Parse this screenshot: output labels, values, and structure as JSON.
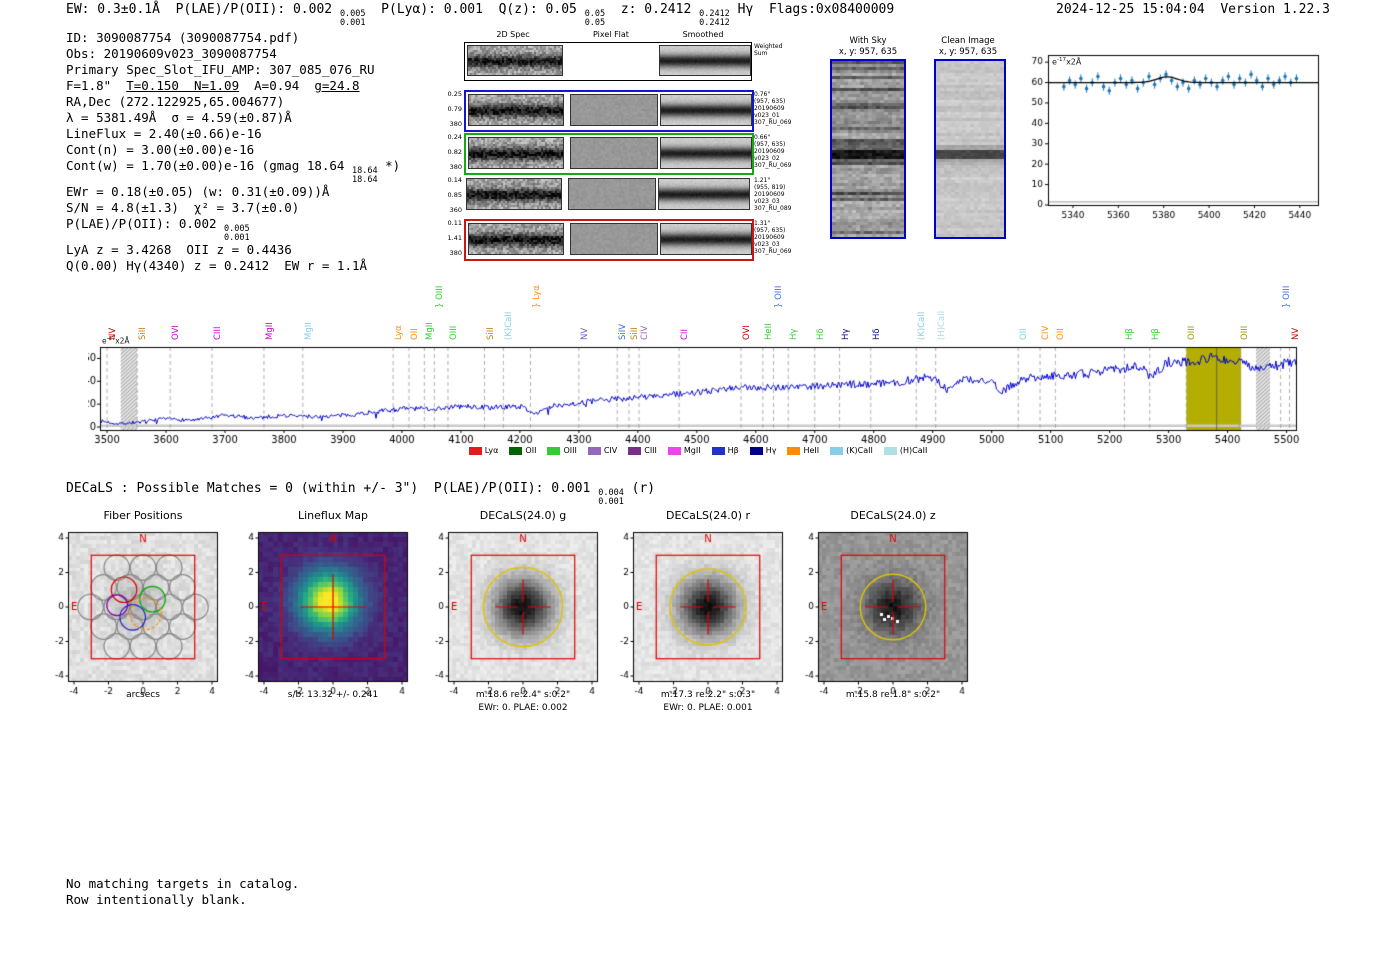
{
  "header_left": [
    {
      "t": "EW: 0.3±0.1Å  P(LAE)/P(OII): 0.002 "
    },
    {
      "hi": "0.005",
      "lo": "0.001"
    },
    {
      "t": "  P(Lyα): 0.001  Q(z): 0.05 "
    },
    {
      "hi": "0.05",
      "lo": "0.05"
    },
    {
      "t": "  z: 0.2412 "
    },
    {
      "hi": "0.2412",
      "lo": "0.2412"
    },
    {
      "t": " Hγ  Flags:0x08400009"
    }
  ],
  "header_right": "2024-12-25 15:04:04  Version 1.22.3",
  "info_lines": [
    [
      {
        "t": "ID: 3090087754 (3090087754.pdf)"
      }
    ],
    [
      {
        "t": "Obs: 20190609v023_3090087754"
      }
    ],
    [
      {
        "t": "Primary Spec_Slot_IFU_AMP: 307_085_076_RU"
      }
    ],
    [
      {
        "t": "F=1.8\"  "
      },
      {
        "t": "T=0.150  N=1.09",
        "u": true
      },
      {
        "t": "  A=0.94  "
      },
      {
        "t": "g=24.8",
        "u": true
      }
    ],
    [
      {
        "t": "RA,Dec (272.122925,65.004677)"
      }
    ],
    [
      {
        "t": "λ = 5381.49Å  σ = 4.59(±0.87)Å"
      }
    ],
    [
      {
        "t": "LineFlux = 2.40(±0.66)e-16"
      }
    ],
    [
      {
        "t": "Cont(n) = 3.00(±0.00)e-16"
      }
    ],
    [
      {
        "t": "Cont(w) = 1.70(±0.00)e-16 (gmag 18.64 "
      },
      {
        "hi": "18.64",
        "lo": "18.64"
      },
      {
        "t": " *)"
      }
    ],
    [
      {
        "t": "EWr = 0.18(±0.05) (w: 0.31(±0.09))Å"
      }
    ],
    [
      {
        "t": "S/N = 4.8(±1.3)  χ² = 3.7(±0.0)"
      }
    ],
    [
      {
        "t": "P(LAE)/P(OII): 0.002 "
      },
      {
        "hi": "0.005",
        "lo": "0.001"
      }
    ],
    [
      {
        "t": "LyA z = 3.4268  OII z = 0.4436"
      }
    ],
    [
      {
        "t": "Q(0.00) Hγ(4340) z = 0.2412  EW r = 1.1Å"
      }
    ]
  ],
  "spec2d": {
    "col_headers": [
      "2D Spec",
      "Pixel Flat",
      "Smoothed"
    ],
    "rows": [
      {
        "border": "#000000",
        "left": [],
        "right": [
          "Weighted",
          "Sum"
        ]
      },
      {
        "border": "#1515cc",
        "left": [
          "0.25",
          "0.79",
          "380"
        ],
        "right": [
          "0.76\"",
          "(957, 635)",
          "20190609",
          "v023_01",
          "307_RU_069"
        ]
      },
      {
        "border": "#15aa15",
        "left": [
          "0.24",
          "0.82",
          "380"
        ],
        "right": [
          "0.66\"",
          "(957, 635)",
          "20190609",
          "v023_02",
          "307_RU_069"
        ]
      },
      {
        "border": "none",
        "left": [
          "0.14",
          "0.85",
          "360"
        ],
        "right": [
          "1.21\"",
          "(955, 819)",
          "20190609",
          "v023_03",
          "307_RU_089"
        ]
      },
      {
        "border": "#cc1515",
        "left": [
          "0.11",
          "1.41",
          "380"
        ],
        "right": [
          "1.31\"",
          "(957, 635)",
          "20190609",
          "v023_03",
          "307_RU_069"
        ]
      }
    ]
  },
  "strips": [
    {
      "title": "With Sky",
      "subtitle": "x, y: 957, 635"
    },
    {
      "title": "Clean Image",
      "subtitle": "x, y: 957, 635"
    }
  ],
  "units": {
    "base": "e",
    "sup": "-17",
    "rest": "x2Å"
  },
  "chart_data": [
    {
      "id": "detection-zoom",
      "type": "scatter",
      "title": "",
      "units_label": "e-17x2Å",
      "x_range": [
        5329,
        5448
      ],
      "y_range": [
        0,
        73.5
      ],
      "x_ticks": [
        5340,
        5360,
        5380,
        5400,
        5420,
        5440
      ],
      "y_ticks": [
        0,
        10,
        20,
        30,
        40,
        50,
        60,
        70
      ],
      "x": [
        5336,
        5338.5,
        5341,
        5343.5,
        5346,
        5348.5,
        5351,
        5353.5,
        5356,
        5358.5,
        5361,
        5363.5,
        5366,
        5368.5,
        5371,
        5373.5,
        5376,
        5378.5,
        5381,
        5383.5,
        5386,
        5388.5,
        5391,
        5393.5,
        5396,
        5398.5,
        5401,
        5403.5,
        5406,
        5408.5,
        5411,
        5413.5,
        5416,
        5418.5,
        5421,
        5423.5,
        5426,
        5428.5,
        5431,
        5433.5,
        5436,
        5438.5
      ],
      "y": [
        58,
        61,
        59,
        62,
        57,
        60,
        63,
        58,
        56,
        60,
        62,
        59,
        61,
        57,
        60,
        63,
        59,
        62,
        64,
        61,
        58,
        60,
        57,
        61,
        59,
        62,
        60,
        58,
        61,
        63,
        59,
        62,
        60,
        64,
        61,
        58,
        62,
        59,
        61,
        63,
        60,
        62
      ],
      "yerr": 2.0,
      "baseline": 1.5,
      "point_color": "#1f77b4",
      "fit": {
        "type": "gaussian+continuum",
        "continuum": 60,
        "amp": 2.8,
        "center": 5381.5,
        "sigma": 4.6,
        "color": "#000000"
      }
    },
    {
      "id": "full-spectrum",
      "type": "line",
      "title": "",
      "units_label": "e-17x2Å",
      "x_range": [
        3488,
        5516
      ],
      "y_range": [
        0,
        70
      ],
      "x_ticks": [
        3500,
        3600,
        3700,
        3800,
        3900,
        4000,
        4100,
        4200,
        4300,
        4400,
        4500,
        4600,
        4700,
        4800,
        4900,
        5000,
        5100,
        5200,
        5300,
        5400,
        5500
      ],
      "y_ticks": [
        0,
        20,
        40,
        60
      ],
      "line_color": "#0000cc",
      "noise_amp": 2.2,
      "noise_seed": 7,
      "anchors": [
        [
          3490,
          5
        ],
        [
          3520,
          3
        ],
        [
          3550,
          4
        ],
        [
          3600,
          7
        ],
        [
          3650,
          6
        ],
        [
          3700,
          10
        ],
        [
          3750,
          8
        ],
        [
          3800,
          10
        ],
        [
          3850,
          9
        ],
        [
          3900,
          10
        ],
        [
          3950,
          13
        ],
        [
          4000,
          16
        ],
        [
          4050,
          16
        ],
        [
          4100,
          18
        ],
        [
          4150,
          17
        ],
        [
          4200,
          18
        ],
        [
          4230,
          12
        ],
        [
          4260,
          19
        ],
        [
          4300,
          21
        ],
        [
          4350,
          24
        ],
        [
          4400,
          26
        ],
        [
          4450,
          28
        ],
        [
          4500,
          30
        ],
        [
          4550,
          33
        ],
        [
          4600,
          35
        ],
        [
          4650,
          35
        ],
        [
          4700,
          36
        ],
        [
          4750,
          37
        ],
        [
          4800,
          38
        ],
        [
          4850,
          40
        ],
        [
          4900,
          44
        ],
        [
          4925,
          32
        ],
        [
          4950,
          42
        ],
        [
          5000,
          40
        ],
        [
          5015,
          30
        ],
        [
          5050,
          42
        ],
        [
          5100,
          45
        ],
        [
          5150,
          46
        ],
        [
          5200,
          50
        ],
        [
          5250,
          53
        ],
        [
          5270,
          44
        ],
        [
          5300,
          57
        ],
        [
          5350,
          58
        ],
        [
          5381,
          62
        ],
        [
          5400,
          58
        ],
        [
          5430,
          55
        ],
        [
          5460,
          50
        ],
        [
          5490,
          55
        ],
        [
          5516,
          57
        ]
      ],
      "highlight_band": {
        "x0": 5330,
        "x1": 5423,
        "color": "#b4ae00"
      },
      "hatch_bands": [
        [
          3523,
          3551
        ],
        [
          5448,
          5472
        ]
      ],
      "detection_line": 5381.49,
      "line_labels": [
        {
          "t": "NV",
          "wl": 3500,
          "c": "#cc0000"
        },
        {
          "t": "SiII",
          "wl": 3551,
          "c": "#b8860b"
        },
        {
          "t": "OVI",
          "wl": 3607,
          "c": "#cc00cc"
        },
        {
          "t": "CIII",
          "wl": 3678,
          "c": "#cc00cc"
        },
        {
          "t": "MgII",
          "wl": 3766,
          "c": "#cc00cc"
        },
        {
          "t": "MgII",
          "wl": 3832,
          "c": "#87ceeb"
        },
        {
          "t": "Lyα",
          "wl": 3985,
          "c": "#ff8c00"
        },
        {
          "t": "OII",
          "wl": 4012,
          "c": "#ff8c00"
        },
        {
          "t": "MgII",
          "wl": 4038,
          "c": "#32cd32"
        },
        {
          "t": "} OIII",
          "wl": 4055,
          "c": "#32cd32",
          "rise": 32
        },
        {
          "t": "OIII",
          "wl": 4078,
          "c": "#32cd32"
        },
        {
          "t": "SiII",
          "wl": 4140,
          "c": "#b8860b"
        },
        {
          "t": "(K)CaII",
          "wl": 4172,
          "c": "#87ceeb"
        },
        {
          "t": "} Lyα",
          "wl": 4218,
          "c": "#ff8c00",
          "rise": 32
        },
        {
          "t": "NV",
          "wl": 4300,
          "c": "#6a5acd"
        },
        {
          "t": "SiIV",
          "wl": 4365,
          "c": "#4169e1"
        },
        {
          "t": "SiII",
          "wl": 4385,
          "c": "#b8860b"
        },
        {
          "t": "CIV",
          "wl": 4402,
          "c": "#9467bd"
        },
        {
          "t": "CII",
          "wl": 4470,
          "c": "#cc00cc"
        },
        {
          "t": "OVI",
          "wl": 4575,
          "c": "#cc0000"
        },
        {
          "t": "HeII",
          "wl": 4612,
          "c": "#32cd32"
        },
        {
          "t": "} OIII",
          "wl": 4630,
          "c": "#4169e1",
          "rise": 32
        },
        {
          "t": "Hγ",
          "wl": 4655,
          "c": "#32cd32"
        },
        {
          "t": "Hδ",
          "wl": 4700,
          "c": "#32cd32"
        },
        {
          "t": "Hγ",
          "wl": 4742,
          "c": "#00008b"
        },
        {
          "t": "Hδ",
          "wl": 4795,
          "c": "#00008b"
        },
        {
          "t": "(K)CaII",
          "wl": 4872,
          "c": "#87ceeb"
        },
        {
          "t": "(H)CaII",
          "wl": 4905,
          "c": "#add8e6"
        },
        {
          "t": "OII",
          "wl": 5045,
          "c": "#87ceeb"
        },
        {
          "t": "CIV",
          "wl": 5082,
          "c": "#ff8c00"
        },
        {
          "t": "OII",
          "wl": 5108,
          "c": "#ff8c00"
        },
        {
          "t": "Hβ",
          "wl": 5225,
          "c": "#32cd32"
        },
        {
          "t": "Hβ",
          "wl": 5268,
          "c": "#32cd32"
        },
        {
          "t": "OIII",
          "wl": 5330,
          "c": "#999900"
        },
        {
          "t": "OIII",
          "wl": 5420,
          "c": "#999900"
        },
        {
          "t": "} OIII",
          "wl": 5490,
          "c": "#4169e1",
          "rise": 32
        },
        {
          "t": "NV",
          "wl": 5505,
          "c": "#cc0000"
        }
      ],
      "legend": [
        {
          "label": "Lyα",
          "color": "#e41a1c"
        },
        {
          "label": "OII",
          "color": "#006400"
        },
        {
          "label": "OIII",
          "color": "#32cd32"
        },
        {
          "label": "CIV",
          "color": "#9467bd"
        },
        {
          "label": "CIII",
          "color": "#7b2d8b"
        },
        {
          "label": "MgII",
          "color": "#ee44ee"
        },
        {
          "label": "Hβ",
          "color": "#2233cc"
        },
        {
          "label": "Hγ",
          "color": "#00008b"
        },
        {
          "label": "HeII",
          "color": "#ff8c00"
        },
        {
          "label": "(K)CaII",
          "color": "#87ceeb"
        },
        {
          "label": "(H)CaII",
          "color": "#b0e0e6"
        }
      ]
    }
  ],
  "decals_header": [
    {
      "t": "DECaLS : Possible Matches = 0 (within +/- 3\")  P(LAE)/P(OII): 0.001 "
    },
    {
      "hi": "0.004",
      "lo": "0.001"
    },
    {
      "t": " (r)"
    }
  ],
  "compass": {
    "n": "N",
    "e": "E"
  },
  "cutouts": [
    {
      "title": "Fiber Positions",
      "kind": "fiber",
      "xlabel": "arcsecs",
      "caption_lines": [],
      "ticks": [
        -4,
        -2,
        0,
        2,
        4
      ]
    },
    {
      "title": "Lineflux Map",
      "kind": "lineflux",
      "caption_lines": [
        "s/b: 13.32 +/- 0.241"
      ],
      "ticks": [
        -4,
        -2,
        0,
        2,
        4
      ]
    },
    {
      "title": "DECaLS(24.0) g",
      "kind": "blob_light",
      "caption_lines": [
        "m:18.6 re:2.4\" s:0.2\"",
        "EWr: 0. PLAE: 0.002"
      ],
      "ticks": [
        -4,
        -2,
        0,
        2,
        4
      ],
      "aperture_r": 2.3
    },
    {
      "title": "DECaLS(24.0) r",
      "kind": "blob_light",
      "caption_lines": [
        "m:17.3 re:2.2\" s:0.3\"",
        "EWr: 0. PLAE: 0.001"
      ],
      "ticks": [
        -4,
        -2,
        0,
        2,
        4
      ],
      "aperture_r": 2.2
    },
    {
      "title": "DECaLS(24.0) z",
      "kind": "blob_dark",
      "caption_lines": [
        "m:15.8 re:1.8\" s:0.2\""
      ],
      "ticks": [
        -4,
        -2,
        0,
        2,
        4
      ],
      "aperture_r": 1.9
    }
  ],
  "footer": [
    "No matching targets in catalog.",
    "Row intentionally blank."
  ]
}
